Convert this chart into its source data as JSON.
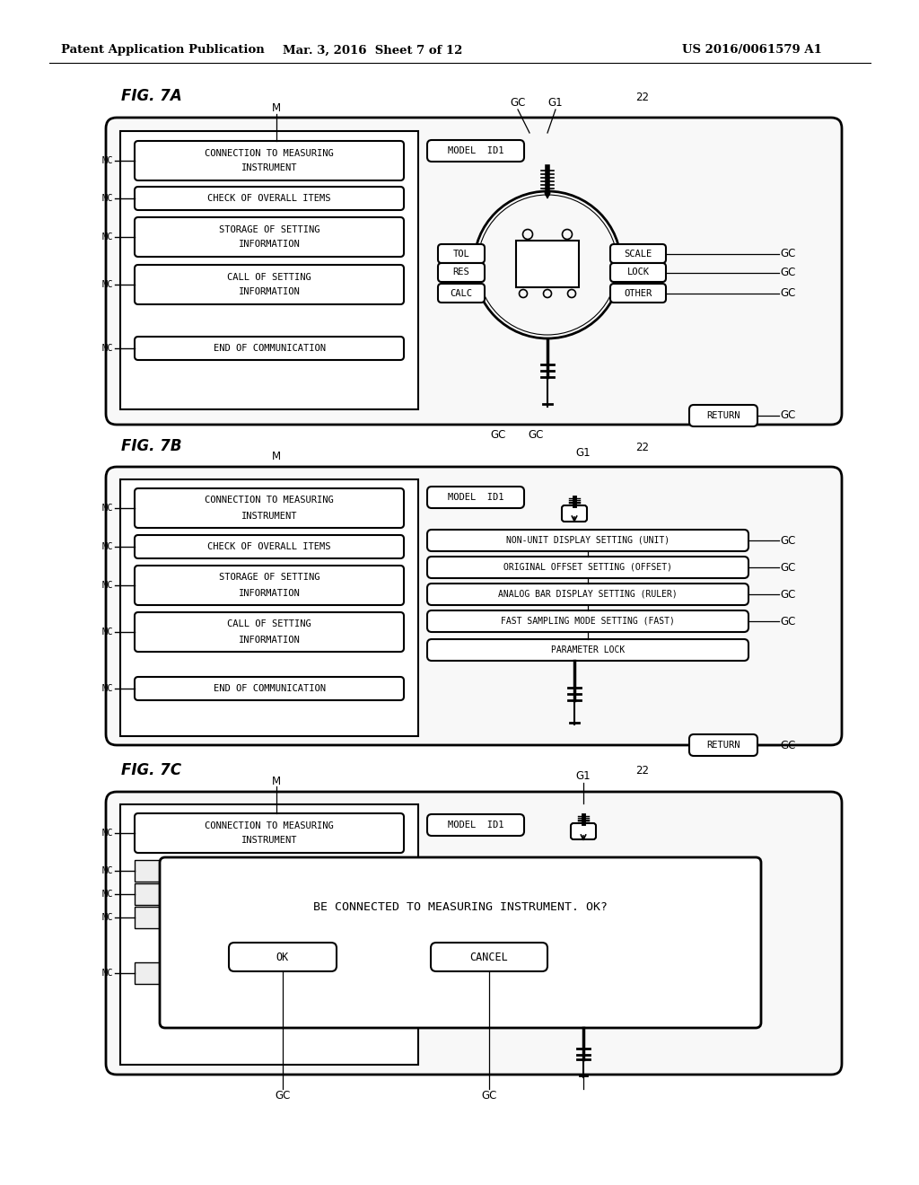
{
  "header_left": "Patent Application Publication",
  "header_mid": "Mar. 3, 2016  Sheet 7 of 12",
  "header_right": "US 2016/0061579 A1",
  "bg_color": "#ffffff",
  "fig7a": {
    "title": "FIG. 7A",
    "left_menu": [
      "CONNECTION TO MEASURING\nINSTRUMENT",
      "CHECK OF OVERALL ITEMS",
      "STORAGE OF SETTING\nINFORMATION",
      "CALL OF SETTING\nINFORMATION",
      "END OF COMMUNICATION"
    ],
    "model_id": "MODEL  ID1",
    "right_buttons": [
      "SCALE",
      "LOCK",
      "OTHER"
    ],
    "left_buttons": [
      "TOL",
      "RES",
      "CALC"
    ],
    "return_btn": "RETURN"
  },
  "fig7b": {
    "title": "FIG. 7B",
    "left_menu": [
      "CONNECTION TO MEASURING\nINSTRUMENT",
      "CHECK OF OVERALL ITEMS",
      "STORAGE OF SETTING\nINFORMATION",
      "CALL OF SETTING\nINFORMATION",
      "END OF COMMUNICATION"
    ],
    "model_id": "MODEL  ID1",
    "right_items": [
      "NON-UNIT DISPLAY SETTING (UNIT)",
      "ORIGINAL OFFSET SETTING (OFFSET)",
      "ANALOG BAR DISPLAY SETTING (RULER)",
      "FAST SAMPLING MODE SETTING (FAST)",
      "PARAMETER LOCK"
    ],
    "return_btn": "RETURN"
  },
  "fig7c": {
    "title": "FIG. 7C",
    "left_menu_top": "CONNECTION TO MEASURING\nINSTRUMENT",
    "model_id": "MODEL  ID1",
    "dialog_text": "BE CONNECTED TO MEASURING INSTRUMENT. OK?",
    "ok_btn": "OK",
    "cancel_btn": "CANCEL"
  }
}
